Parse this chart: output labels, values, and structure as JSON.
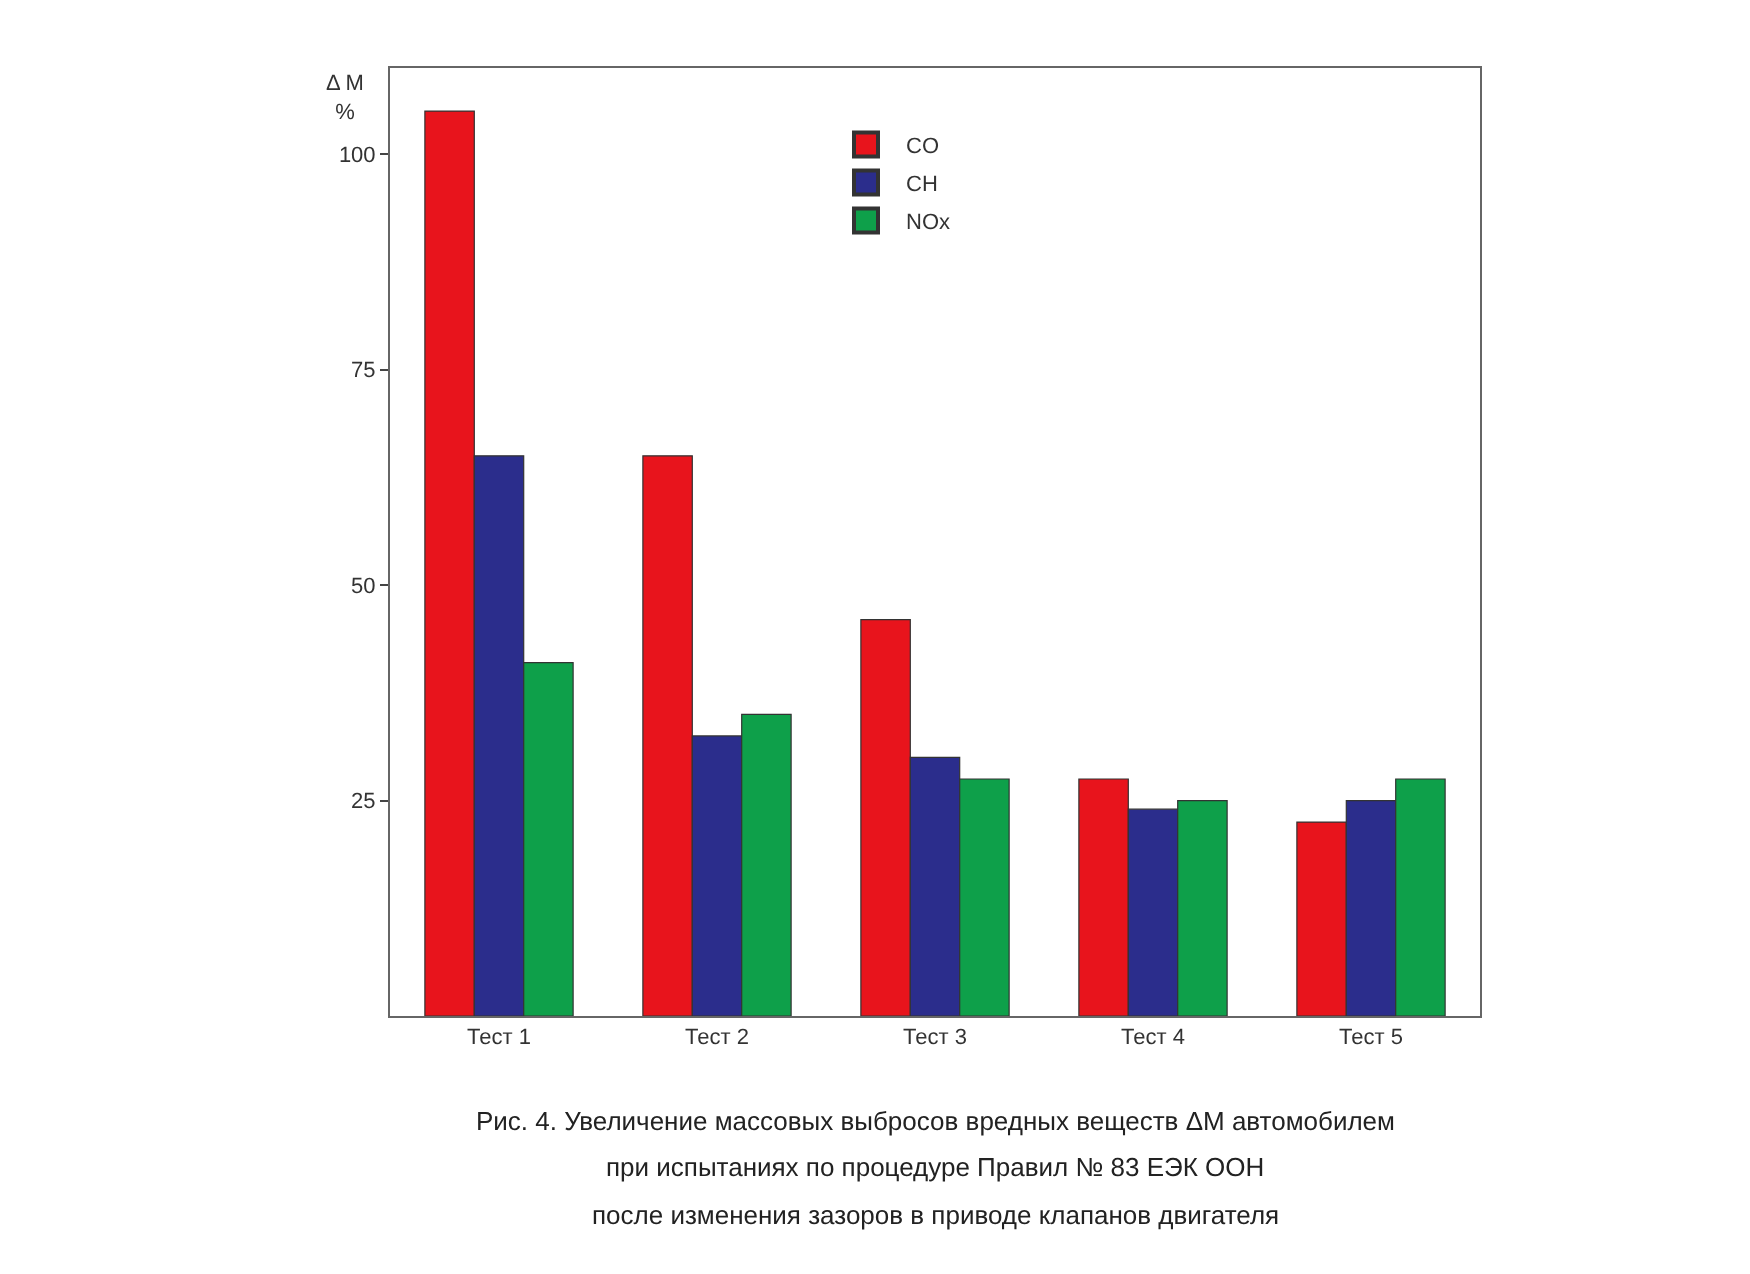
{
  "chart_data": {
    "type": "bar",
    "categories": [
      "Тест 1",
      "Тест 2",
      "Тест 3",
      "Тест 4",
      "Тест 5"
    ],
    "series": [
      {
        "name": "CO",
        "color": "#e8141c",
        "values": [
          105,
          65,
          46,
          27.5,
          22.5
        ]
      },
      {
        "name": "CH",
        "color": "#2b2d8c",
        "values": [
          65,
          32.5,
          30,
          24,
          25
        ]
      },
      {
        "name": "NOx",
        "color": "#0ea04a",
        "values": [
          41,
          35,
          27.5,
          25,
          27.5
        ]
      }
    ],
    "ylabel": "Δ M\n%",
    "ylim": [
      0,
      110
    ],
    "yticks": [
      25,
      50,
      75,
      100
    ],
    "legend": "top",
    "annotations": [
      "Рис. 4. Увеличение массовых выбросов вредных веществ ΔM автомобилем",
      "при испытаниях по процедуре Правил № 83 ЕЭК ООН",
      "после изменения зазоров в приводе клапанов двигателя"
    ]
  }
}
